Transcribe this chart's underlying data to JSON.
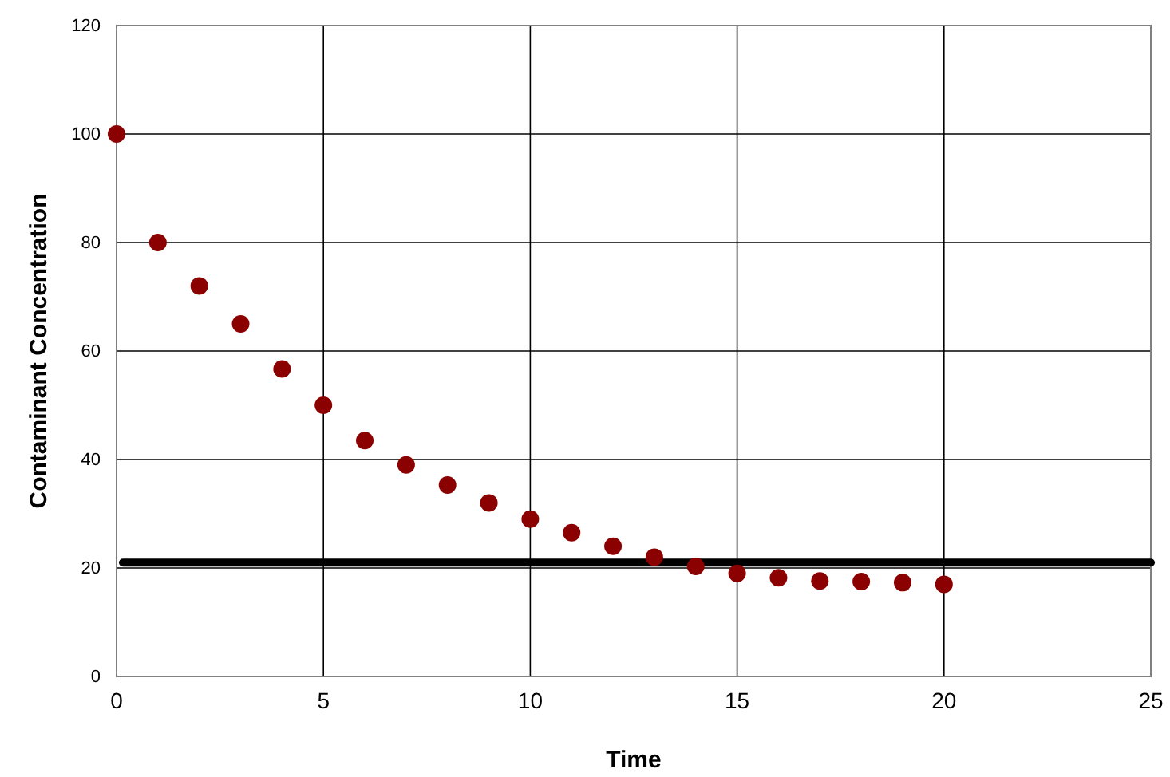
{
  "chart_data": {
    "type": "scatter",
    "xlabel": "Time",
    "ylabel": "Contaminant Concentration",
    "x": [
      0,
      1,
      2,
      3,
      4,
      5,
      6,
      7,
      8,
      9,
      10,
      11,
      12,
      13,
      14,
      15,
      16,
      17,
      18,
      19,
      20
    ],
    "series": [
      {
        "color": "#8b0000",
        "values": [
          100,
          80,
          72,
          65,
          56.7,
          50,
          43.5,
          39,
          35.3,
          32,
          29,
          26.5,
          24,
          22,
          20.3,
          19,
          18.2,
          17.6,
          17.5,
          17.3,
          17
        ]
      }
    ],
    "xlim": [
      0,
      25
    ],
    "xticks": [
      0,
      5,
      10,
      15,
      20,
      25
    ],
    "ylim": [
      0,
      120
    ],
    "yticks": [
      0,
      20,
      40,
      60,
      80,
      100,
      120
    ],
    "grid": true,
    "marker": "circle",
    "ref_lines": [
      {
        "axis": "y",
        "value": 21,
        "color": "#000000"
      }
    ]
  }
}
